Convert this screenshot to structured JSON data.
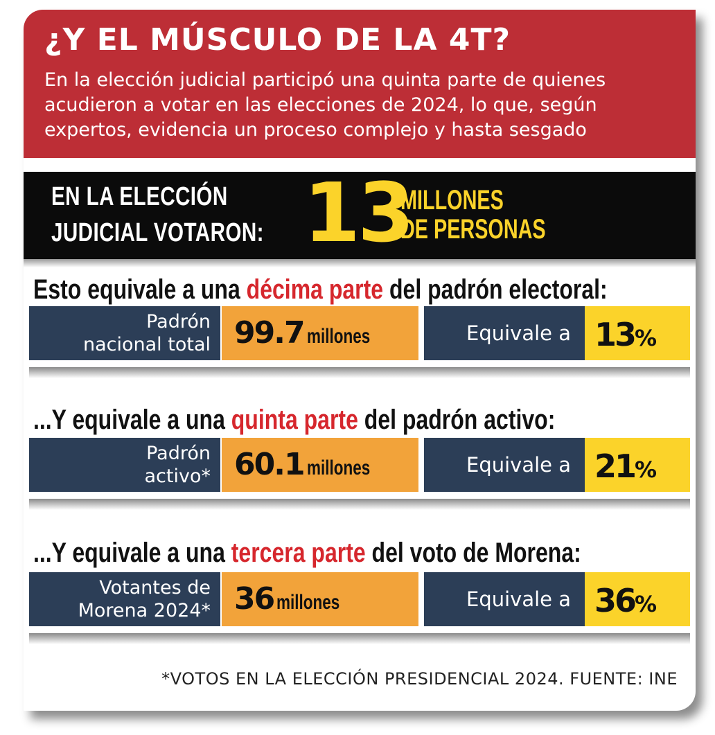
{
  "header": {
    "title": "¿Y EL MÚSCULO DE LA 4T?",
    "subtitle": "En la elección judicial participó una quinta parte de quienes acudieron a votar en las elecciones de 2024, lo que, según expertos, evidencia un proceso complejo y hasta sesgado"
  },
  "highlight_bar": {
    "left_line1": "EN LA ELECCIÓN",
    "left_line2": "JUDICIAL VOTARON:",
    "number": "13",
    "right_line1": "MILLONES",
    "right_line2": "DE PERSONAS"
  },
  "sections": [
    {
      "heading_pre": "Esto equivale a una ",
      "heading_hl": "décima parte",
      "heading_post": " del padrón electoral:",
      "label_line1": "Padrón",
      "label_line2": "nacional total",
      "value": "99.7",
      "unit": "millones",
      "eq_label": "Equivale a",
      "percent": "13",
      "percent_sign": "%"
    },
    {
      "heading_pre": "...Y equivale a una ",
      "heading_hl": "quinta parte",
      "heading_post": " del padrón activo:",
      "label_line1": "Padrón",
      "label_line2": "activo*",
      "value": "60.1",
      "unit": "millones",
      "eq_label": "Equivale a",
      "percent": "21",
      "percent_sign": "%"
    },
    {
      "heading_pre": "...Y equivale a una ",
      "heading_hl": "tercera parte",
      "heading_post": " del voto de Morena:",
      "label_line1": "Votantes de",
      "label_line2": "Morena 2024*",
      "value": "36",
      "unit": "millones",
      "eq_label": "Equivale a",
      "percent": "36",
      "percent_sign": "%"
    }
  ],
  "footer": "*VOTOS EN LA ELECCIÓN PRESIDENCIAL 2024. FUENTE: INE",
  "colors": {
    "header_red": "#bd2e36",
    "navy": "#2c3e57",
    "orange": "#f2a33a",
    "yellow": "#fbd32a",
    "highlight_red": "#d6272d"
  }
}
